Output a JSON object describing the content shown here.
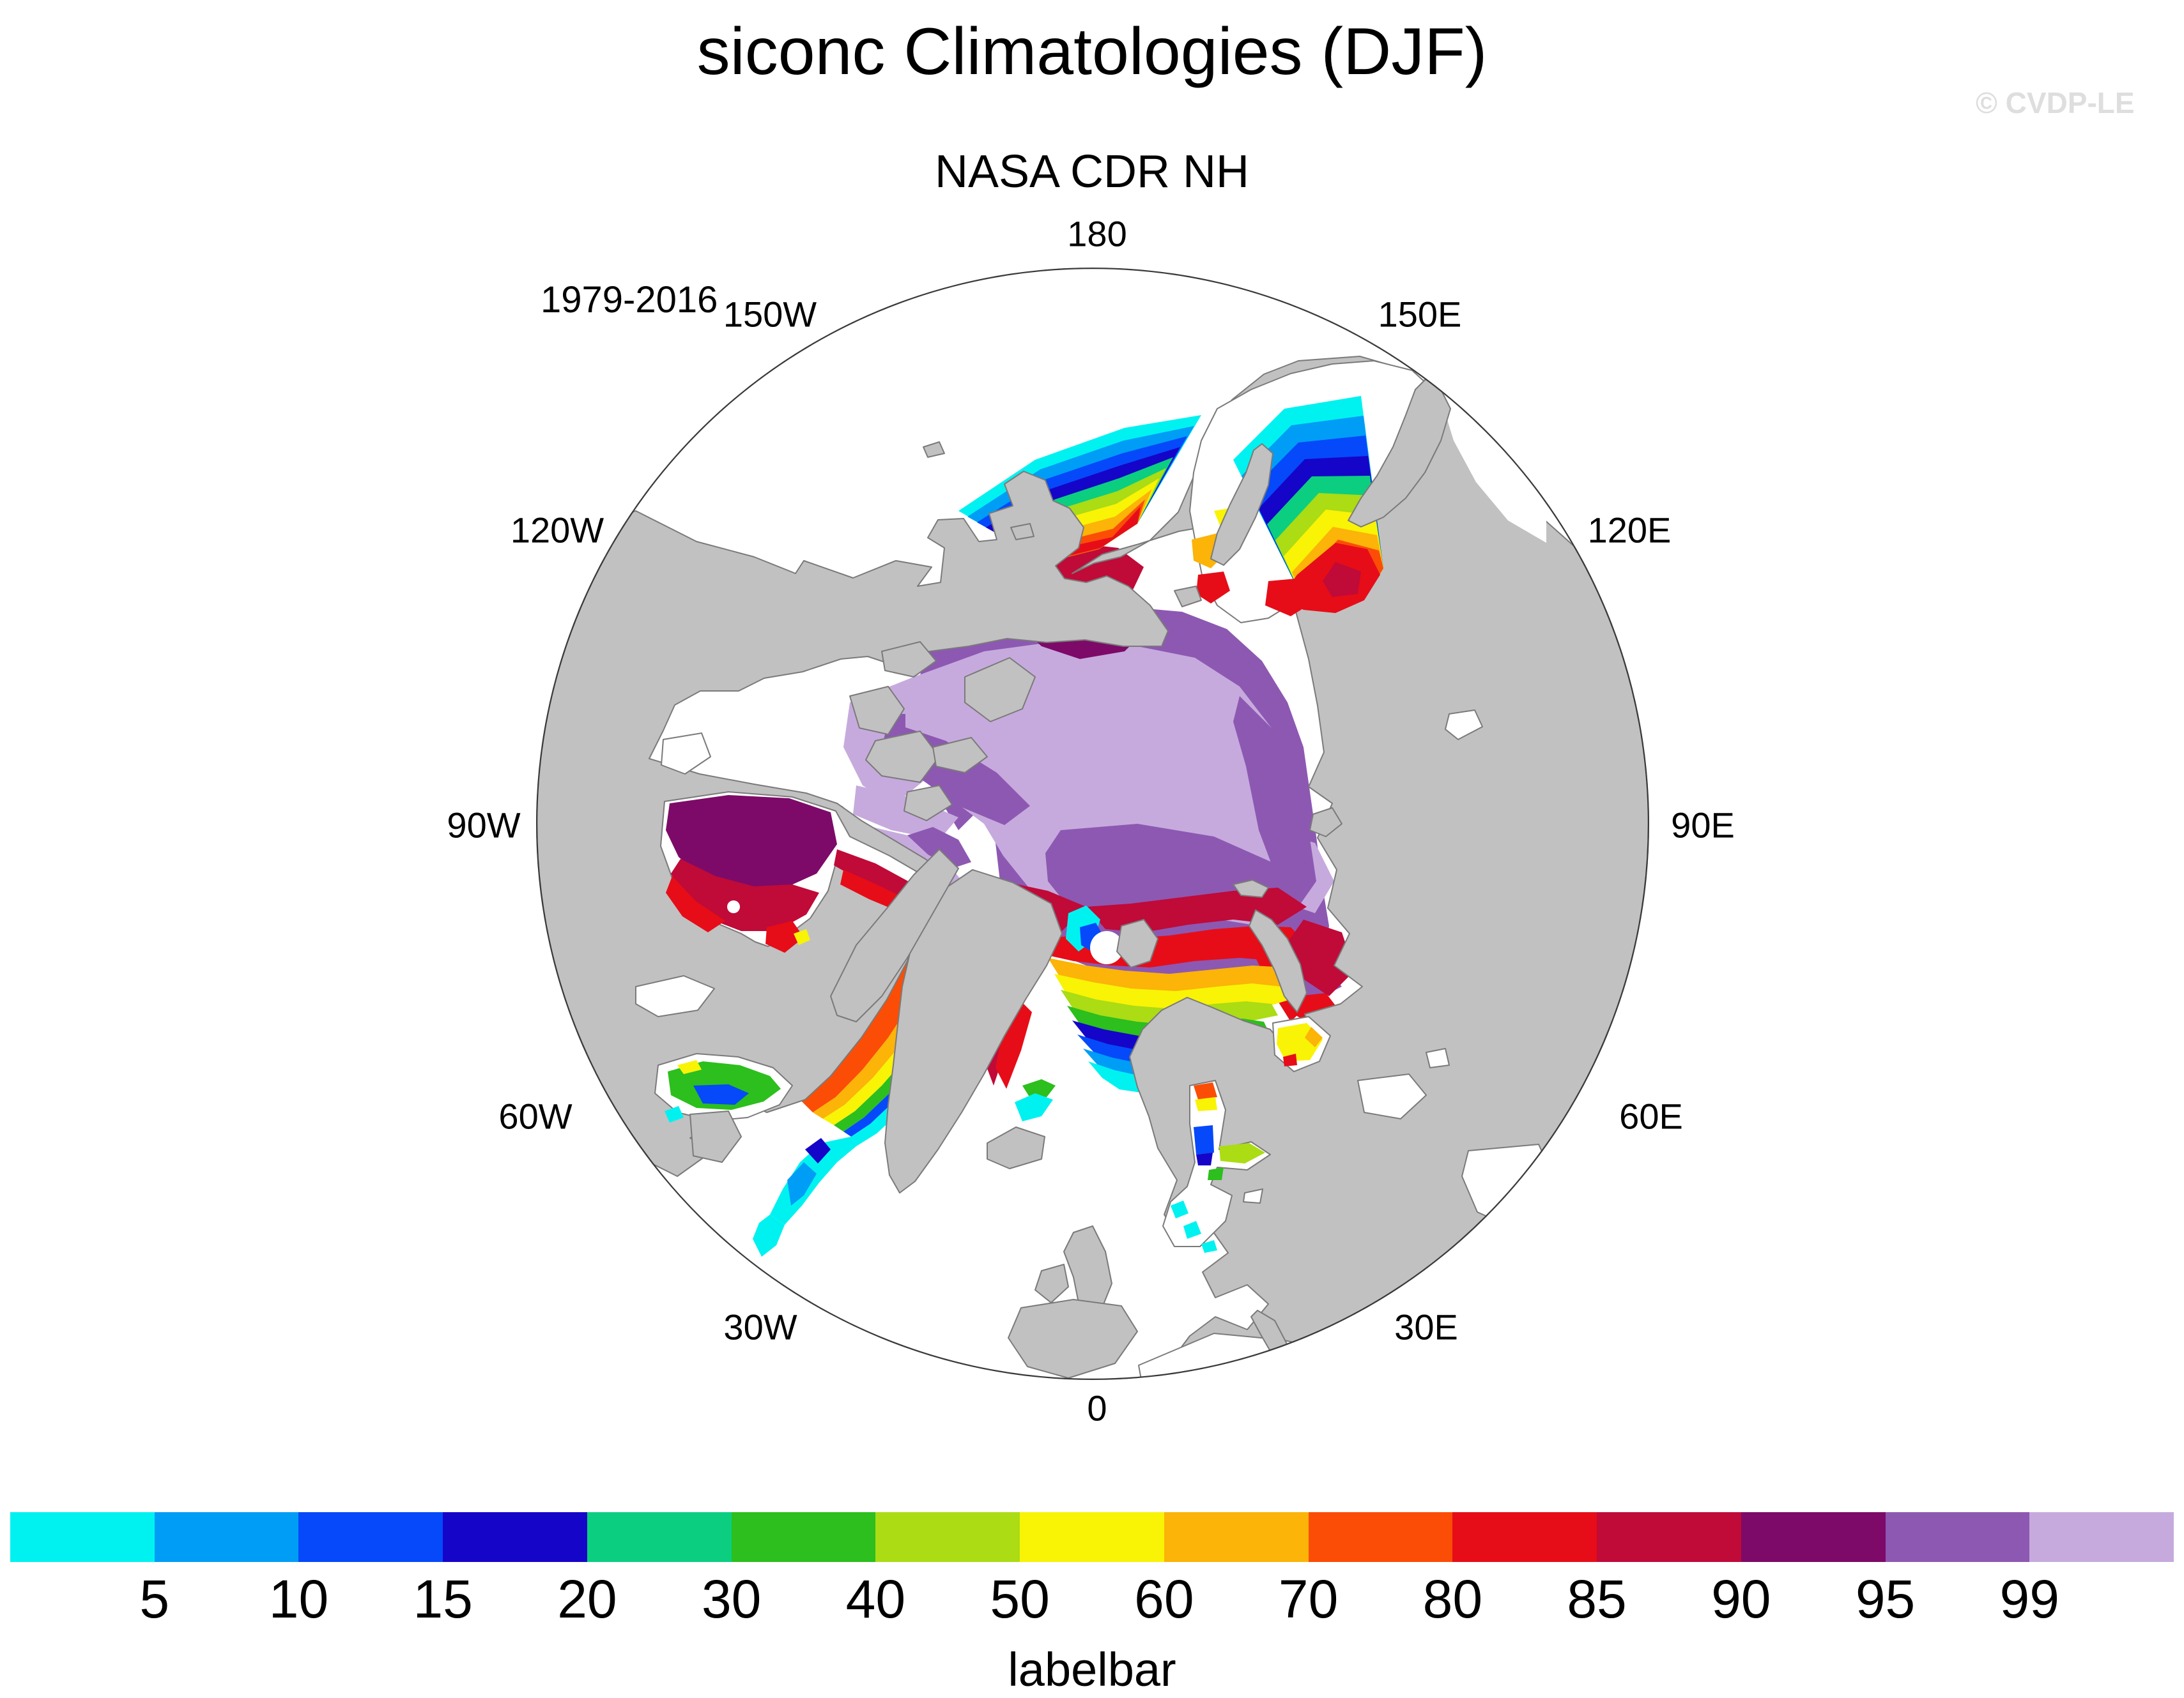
{
  "title": "siconc Climatologies (DJF)",
  "watermark": "© CVDP-LE",
  "map": {
    "subtitle": "NASA CDR NH",
    "period": "1979-2016",
    "lon_labels": [
      "180",
      "150W",
      "150E",
      "120W",
      "120E",
      "90W",
      "90E",
      "60W",
      "60E",
      "30W",
      "30E",
      "0"
    ],
    "land_color": "#c1c1c1",
    "ocean_color": "#ffffff",
    "coast_color": "#7a7a7a",
    "boundary_color": "#3a3a3a"
  },
  "labelbar": {
    "title": "labelbar",
    "ticks": [
      "5",
      "10",
      "15",
      "20",
      "30",
      "40",
      "50",
      "60",
      "70",
      "80",
      "85",
      "90",
      "95",
      "99"
    ],
    "colors": [
      "#00f2f0",
      "#009df6",
      "#0549fa",
      "#1505c8",
      "#0bce80",
      "#2cbf1d",
      "#abdc14",
      "#f9f306",
      "#fbb407",
      "#fb4d06",
      "#e60d18",
      "#c00a38",
      "#7d0a68",
      "#8d58b2",
      "#c6aadd"
    ]
  },
  "chart_data": {
    "type": "heatmap",
    "title": "siconc Climatologies (DJF)",
    "subtitle": "NASA CDR NH",
    "period": "1979-2016",
    "projection": "north-polar-stereographic",
    "meridian_labels": [
      "180",
      "150W",
      "150E",
      "120W",
      "120E",
      "90W",
      "90E",
      "60W",
      "60E",
      "30W",
      "30E",
      "0"
    ],
    "legend": {
      "title": "labelbar",
      "tick_values": [
        5,
        10,
        15,
        20,
        30,
        40,
        50,
        60,
        70,
        80,
        85,
        90,
        95,
        99
      ],
      "n_bins": 15,
      "colors": [
        "#00f2f0",
        "#009df6",
        "#0549fa",
        "#1505c8",
        "#0bce80",
        "#2cbf1d",
        "#abdc14",
        "#f9f306",
        "#fbb407",
        "#fb4d06",
        "#e60d18",
        "#c00a38",
        "#7d0a68",
        "#8d58b2",
        "#c6aadd"
      ]
    }
  }
}
